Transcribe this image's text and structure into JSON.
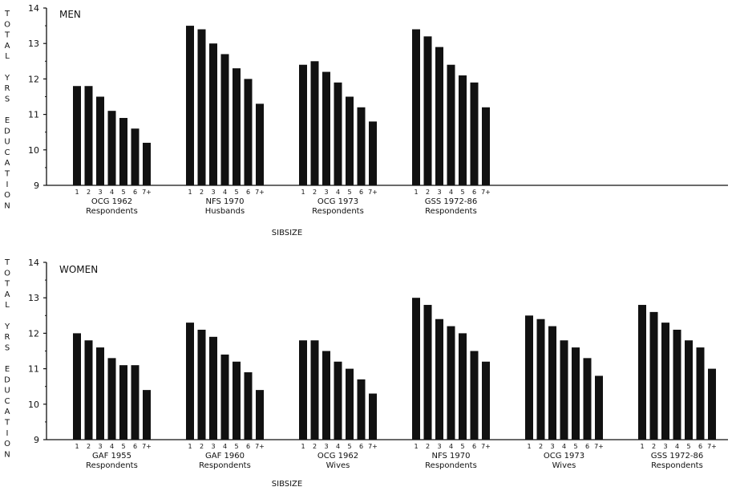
{
  "chart_data": [
    {
      "type": "bar",
      "title": "MEN",
      "ylabel": "TOTAL YRS EDUCATION",
      "xlabel": "SIBSIZE",
      "ylim": [
        9,
        14
      ],
      "yticks": [
        9,
        10,
        11,
        12,
        13,
        14
      ],
      "categories": [
        "1",
        "2",
        "3",
        "4",
        "5",
        "6",
        "7+"
      ],
      "groups": [
        {
          "line1": "OCG 1962",
          "line2": "Respondents",
          "values": [
            11.8,
            11.8,
            11.5,
            11.1,
            10.9,
            10.6,
            10.2
          ]
        },
        {
          "line1": "NFS 1970",
          "line2": "Husbands",
          "values": [
            13.5,
            13.4,
            13.0,
            12.7,
            12.3,
            12.0,
            11.3
          ]
        },
        {
          "line1": "OCG 1973",
          "line2": "Respondents",
          "values": [
            12.4,
            12.5,
            12.2,
            11.9,
            11.5,
            11.2,
            10.8
          ]
        },
        {
          "line1": "GSS 1972-86",
          "line2": "Respondents",
          "values": [
            13.4,
            13.2,
            12.9,
            12.4,
            12.1,
            11.9,
            11.2
          ]
        }
      ]
    },
    {
      "type": "bar",
      "title": "WOMEN",
      "ylabel": "TOTAL YRS EDUCATION",
      "xlabel": "SIBSIZE",
      "ylim": [
        9,
        14
      ],
      "yticks": [
        9,
        10,
        11,
        12,
        13,
        14
      ],
      "categories": [
        "1",
        "2",
        "3",
        "4",
        "5",
        "6",
        "7+"
      ],
      "groups": [
        {
          "line1": "GAF 1955",
          "line2": "Respondents",
          "values": [
            12.0,
            11.8,
            11.6,
            11.3,
            11.1,
            11.1,
            10.4
          ]
        },
        {
          "line1": "GAF 1960",
          "line2": "Respondents",
          "values": [
            12.3,
            12.1,
            11.9,
            11.4,
            11.2,
            10.9,
            10.4
          ]
        },
        {
          "line1": "OCG 1962",
          "line2": "Wives",
          "values": [
            11.8,
            11.8,
            11.5,
            11.2,
            11.0,
            10.7,
            10.3
          ]
        },
        {
          "line1": "NFS 1970",
          "line2": "Respondents",
          "values": [
            13.0,
            12.8,
            12.4,
            12.2,
            12.0,
            11.5,
            11.2
          ]
        },
        {
          "line1": "OCG 1973",
          "line2": "Wives",
          "values": [
            12.5,
            12.4,
            12.2,
            11.8,
            11.6,
            11.3,
            10.8
          ]
        },
        {
          "line1": "GSS 1972-86",
          "line2": "Respondents",
          "values": [
            12.8,
            12.6,
            12.3,
            12.1,
            11.8,
            11.6,
            11.0
          ]
        }
      ]
    }
  ]
}
